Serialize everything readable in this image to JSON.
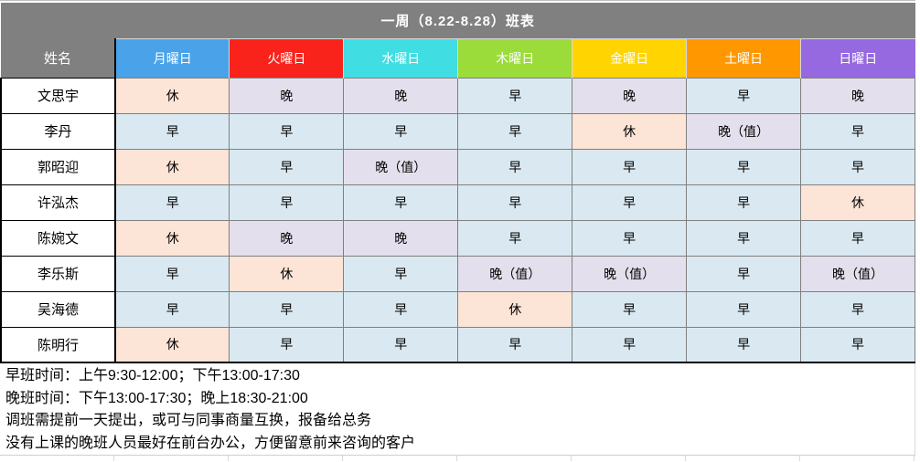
{
  "title": "一周（8.22-8.28）班表",
  "colors": {
    "title_bar_bg": "#808080",
    "title_text": "#ffffff",
    "header_text": "#ffffff",
    "grid_line": "#7f7f7f",
    "shift_bg": {
      "early": "#dae9f1",
      "late": "#e4dfec",
      "late_duty": "#e4dfec",
      "off": "#fce4d6"
    }
  },
  "table": {
    "name_header": "姓名",
    "days": [
      {
        "label": "月曜日",
        "color": "#4aa3e8"
      },
      {
        "label": "火曜日",
        "color": "#fa231b"
      },
      {
        "label": "水曜日",
        "color": "#40dee2"
      },
      {
        "label": "木曜日",
        "color": "#9bdc3a"
      },
      {
        "label": "金曜日",
        "color": "#ffd400"
      },
      {
        "label": "土曜日",
        "color": "#ff9800"
      },
      {
        "label": "日曜日",
        "color": "#9669e0"
      }
    ],
    "rows": [
      {
        "name": "文思宇",
        "shifts": [
          {
            "text": "休",
            "type": "off"
          },
          {
            "text": "晚",
            "type": "late"
          },
          {
            "text": "晚",
            "type": "late"
          },
          {
            "text": "早",
            "type": "early"
          },
          {
            "text": "晚",
            "type": "late"
          },
          {
            "text": "早",
            "type": "early"
          },
          {
            "text": "晚",
            "type": "late"
          }
        ]
      },
      {
        "name": "李丹",
        "shifts": [
          {
            "text": "早",
            "type": "early"
          },
          {
            "text": "早",
            "type": "early"
          },
          {
            "text": "早",
            "type": "early"
          },
          {
            "text": "早",
            "type": "early"
          },
          {
            "text": "休",
            "type": "off"
          },
          {
            "text": "晚（值）",
            "type": "late_duty"
          },
          {
            "text": "早",
            "type": "early"
          }
        ]
      },
      {
        "name": "郭昭迎",
        "shifts": [
          {
            "text": "休",
            "type": "off"
          },
          {
            "text": "早",
            "type": "early"
          },
          {
            "text": "晚（值）",
            "type": "late_duty"
          },
          {
            "text": "早",
            "type": "early"
          },
          {
            "text": "早",
            "type": "early"
          },
          {
            "text": "早",
            "type": "early"
          },
          {
            "text": "早",
            "type": "early"
          }
        ]
      },
      {
        "name": "许泓杰",
        "shifts": [
          {
            "text": "早",
            "type": "early"
          },
          {
            "text": "早",
            "type": "early"
          },
          {
            "text": "早",
            "type": "early"
          },
          {
            "text": "早",
            "type": "early"
          },
          {
            "text": "早",
            "type": "early"
          },
          {
            "text": "早",
            "type": "early"
          },
          {
            "text": "休",
            "type": "off"
          }
        ]
      },
      {
        "name": "陈婉文",
        "shifts": [
          {
            "text": "休",
            "type": "off"
          },
          {
            "text": "晚",
            "type": "late"
          },
          {
            "text": "晚",
            "type": "late"
          },
          {
            "text": "早",
            "type": "early"
          },
          {
            "text": "早",
            "type": "early"
          },
          {
            "text": "早",
            "type": "early"
          },
          {
            "text": "早",
            "type": "early"
          }
        ]
      },
      {
        "name": "李乐斯",
        "shifts": [
          {
            "text": "早",
            "type": "early"
          },
          {
            "text": "休",
            "type": "off"
          },
          {
            "text": "早",
            "type": "early"
          },
          {
            "text": "晚（值）",
            "type": "late_duty"
          },
          {
            "text": "晚（值）",
            "type": "late_duty"
          },
          {
            "text": "早",
            "type": "early"
          },
          {
            "text": "晚（值）",
            "type": "late_duty"
          }
        ]
      },
      {
        "name": "吴海德",
        "shifts": [
          {
            "text": "早",
            "type": "early"
          },
          {
            "text": "早",
            "type": "early"
          },
          {
            "text": "早",
            "type": "early"
          },
          {
            "text": "休",
            "type": "off"
          },
          {
            "text": "早",
            "type": "early"
          },
          {
            "text": "早",
            "type": "early"
          },
          {
            "text": "早",
            "type": "early"
          }
        ]
      },
      {
        "name": "陈明行",
        "shifts": [
          {
            "text": "休",
            "type": "off"
          },
          {
            "text": "早",
            "type": "early"
          },
          {
            "text": "早",
            "type": "early"
          },
          {
            "text": "早",
            "type": "early"
          },
          {
            "text": "早",
            "type": "early"
          },
          {
            "text": "早",
            "type": "early"
          },
          {
            "text": "早",
            "type": "early"
          }
        ]
      }
    ]
  },
  "notes": [
    "早班时间：上午9:30-12:00；下午13:00-17:30",
    "晚班时间：下午13:00-17:30；晚上18:30-21:00",
    "调班需提前一天提出，或可与同事商量互换，报备给总务",
    "没有上课的晚班人员最好在前台办公，方便留意前来咨询的客户"
  ]
}
